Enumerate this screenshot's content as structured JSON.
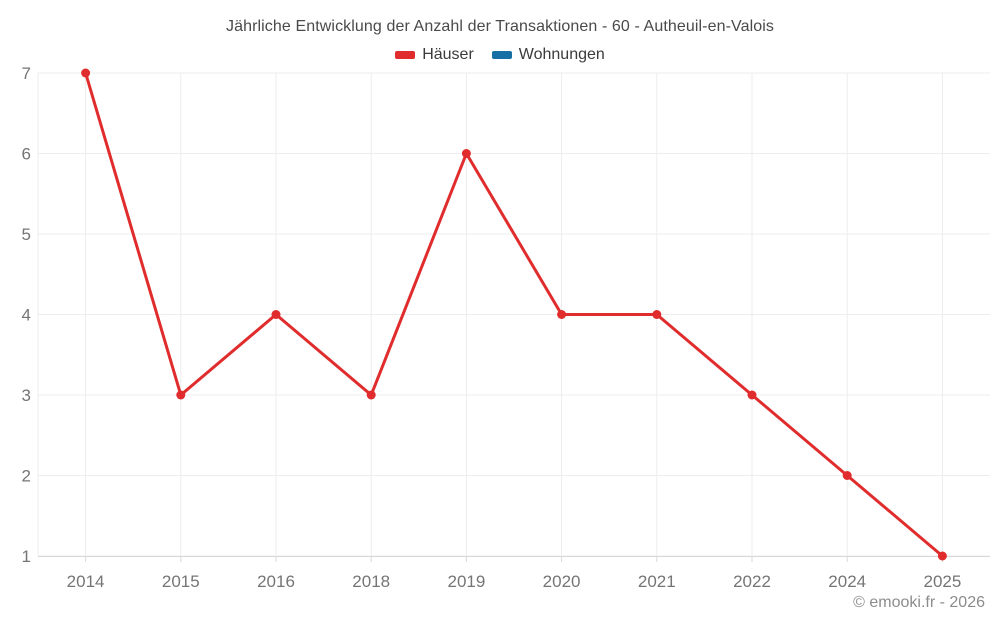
{
  "chart_data": {
    "type": "line",
    "title": "Jährliche Entwicklung der Anzahl der Transaktionen - 60 - Autheuil-en-Valois",
    "categories": [
      "2014",
      "2015",
      "2016",
      "2018",
      "2019",
      "2020",
      "2021",
      "2022",
      "2024",
      "2025"
    ],
    "series": [
      {
        "name": "Häuser",
        "color": "#e02c2c",
        "values": [
          7,
          3,
          4,
          3,
          6,
          4,
          4,
          3,
          2,
          1
        ]
      },
      {
        "name": "Wohnungen",
        "color": "#1770a4",
        "values": []
      }
    ],
    "ylim": [
      1,
      7
    ],
    "yticks": [
      1,
      2,
      3,
      4,
      5,
      6,
      7
    ],
    "grid": true,
    "legend_position": "top",
    "colors": {
      "gridline": "#ededed",
      "axis_line": "#d8d8d8",
      "tick": "#d8d8d8",
      "axis_label": "#757575"
    }
  },
  "footer": {
    "credit": "© emooki.fr - 2026"
  }
}
